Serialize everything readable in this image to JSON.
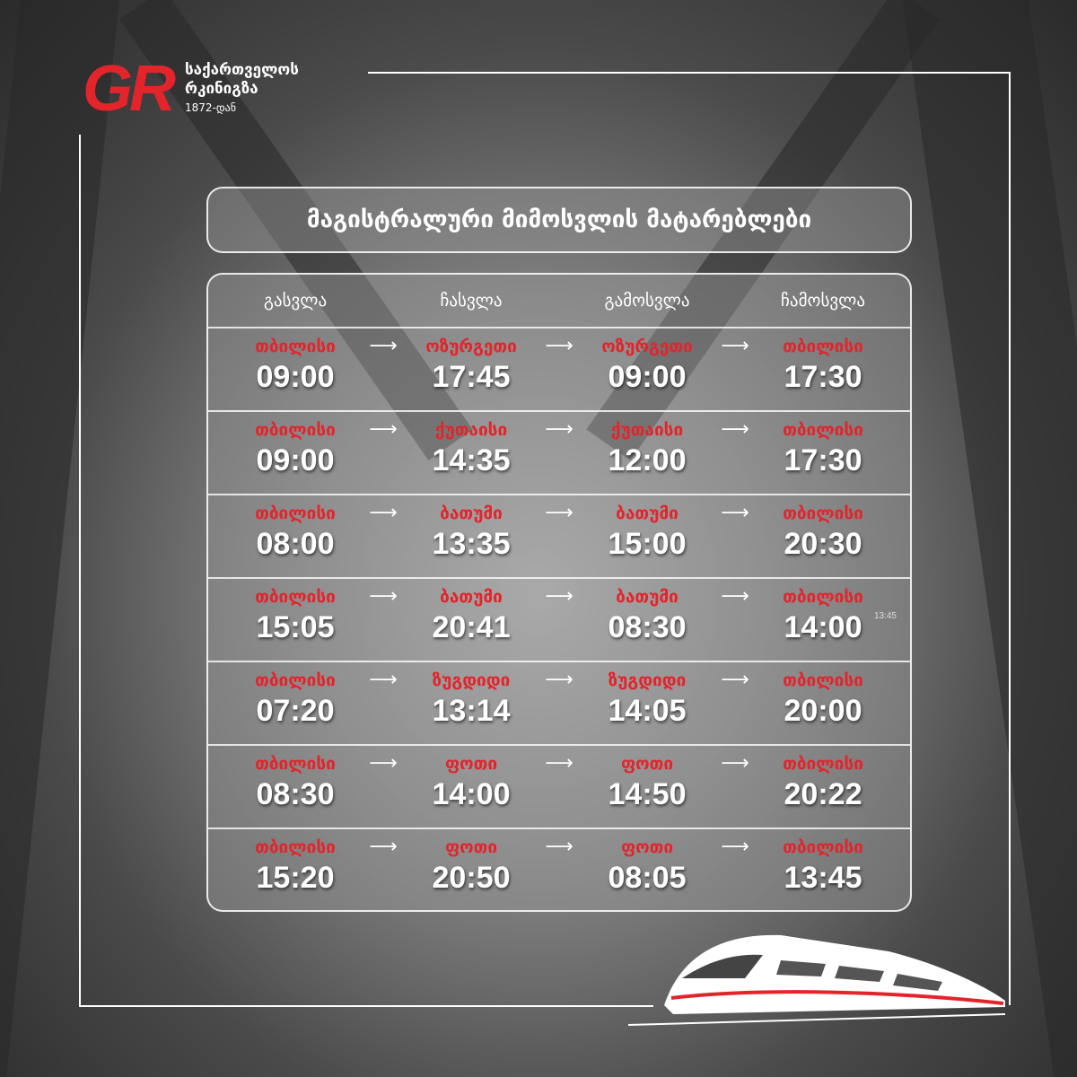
{
  "logo": {
    "mark": "GR",
    "name_line1": "საქართველოს",
    "name_line2": "რკინიგზა",
    "since": "1872-დან",
    "brand_color": "#e3242b"
  },
  "title": "მაგისტრალური მიმოსვლის მატარებლები",
  "headers": [
    "გასვლა",
    "ჩასვლა",
    "გამოსვლა",
    "ჩამოსვლა"
  ],
  "rows": [
    {
      "from": "თბილისი",
      "dep": "09:00",
      "to": "ოზურგეთი",
      "arr": "17:45",
      "ret_from": "ოზურგეთი",
      "ret_dep": "09:00",
      "ret_to": "თბილისი",
      "ret_arr": "17:30"
    },
    {
      "from": "თბილისი",
      "dep": "09:00",
      "to": "ქუთაისი",
      "arr": "14:35",
      "ret_from": "ქუთაისი",
      "ret_dep": "12:00",
      "ret_to": "თბილისი",
      "ret_arr": "17:30"
    },
    {
      "from": "თბილისი",
      "dep": "08:00",
      "to": "ბათუმი",
      "arr": "13:35",
      "ret_from": "ბათუმი",
      "ret_dep": "15:00",
      "ret_to": "თბილისი",
      "ret_arr": "20:30"
    },
    {
      "from": "თბილისი",
      "dep": "15:05",
      "to": "ბათუმი",
      "arr": "20:41",
      "ret_from": "ბათუმი",
      "ret_dep": "08:30",
      "ret_to": "თბილისი",
      "ret_arr": "14:00",
      "note": "13:45"
    },
    {
      "from": "თბილისი",
      "dep": "07:20",
      "to": "ზუგდიდი",
      "arr": "13:14",
      "ret_from": "ზუგდიდი",
      "ret_dep": "14:05",
      "ret_to": "თბილისი",
      "ret_arr": "20:00"
    },
    {
      "from": "თბილისი",
      "dep": "08:30",
      "to": "ფოთი",
      "arr": "14:00",
      "ret_from": "ფოთი",
      "ret_dep": "14:50",
      "ret_to": "თბილისი",
      "ret_arr": "20:22"
    },
    {
      "from": "თბილისი",
      "dep": "15:20",
      "to": "ფოთი",
      "arr": "20:50",
      "ret_from": "ფოთი",
      "ret_dep": "08:05",
      "ret_to": "თბილისი",
      "ret_arr": "13:45"
    }
  ],
  "icons": {
    "arrow": "arrow-right-icon",
    "train": "high-speed-train-icon"
  }
}
